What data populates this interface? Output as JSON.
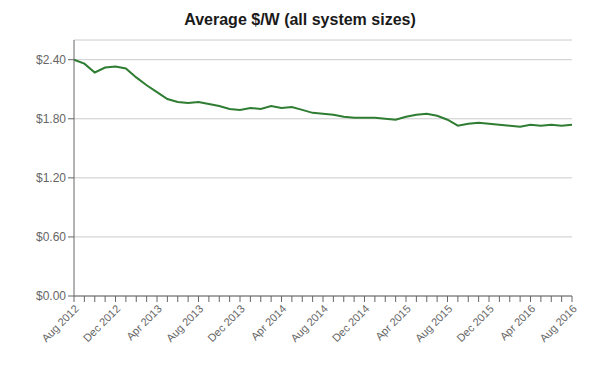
{
  "chart_data": {
    "type": "line",
    "title": "Average $/W (all system sizes)",
    "color": "#2e7d32",
    "grid": true,
    "categories": [
      "Aug 2012",
      null,
      null,
      null,
      "Dec 2012",
      null,
      null,
      null,
      "Apr 2013",
      null,
      null,
      null,
      "Aug 2013",
      null,
      null,
      null,
      "Dec 2013",
      null,
      null,
      null,
      "Apr 2014",
      null,
      null,
      null,
      "Aug 2014",
      null,
      null,
      null,
      "Dec 2014",
      null,
      null,
      null,
      "Apr 2015",
      null,
      null,
      null,
      "Aug 2015",
      null,
      null,
      null,
      "Dec 2015",
      null,
      null,
      null,
      "Apr 2016",
      null,
      null,
      null,
      "Aug 2016"
    ],
    "values": [
      2.4,
      2.36,
      2.27,
      2.32,
      2.33,
      2.31,
      2.22,
      2.14,
      2.07,
      2.0,
      1.97,
      1.96,
      1.97,
      1.95,
      1.93,
      1.9,
      1.89,
      1.91,
      1.9,
      1.93,
      1.91,
      1.92,
      1.89,
      1.86,
      1.85,
      1.84,
      1.82,
      1.81,
      1.81,
      1.81,
      1.8,
      1.79,
      1.82,
      1.84,
      1.85,
      1.83,
      1.79,
      1.73,
      1.75,
      1.76,
      1.75,
      1.74,
      1.73,
      1.72,
      1.74,
      1.73,
      1.74,
      1.73,
      1.74
    ],
    "ylim": [
      0.0,
      2.6
    ],
    "yticks": [
      {
        "value": 0.0,
        "label": "$0.00"
      },
      {
        "value": 0.6,
        "label": "$0.60"
      },
      {
        "value": 1.2,
        "label": "$1.20"
      },
      {
        "value": 1.8,
        "label": "$1.80"
      },
      {
        "value": 2.4,
        "label": "$2.40"
      }
    ]
  }
}
